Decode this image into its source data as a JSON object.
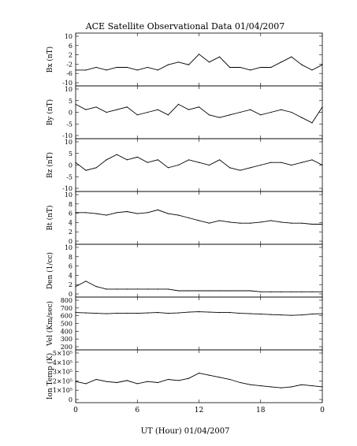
{
  "chart_data": [
    {
      "type": "line",
      "title": "ACE Satellite Observational Data   01/04/2007",
      "ylabel": "Bx (nT)",
      "ylim": [
        -10,
        10
      ],
      "yticks": [
        "10",
        "6",
        "2",
        "-2",
        "-6",
        "-10"
      ],
      "series": [
        {
          "x_hours": [
            0,
            1,
            2,
            3,
            4,
            5,
            6,
            7,
            8,
            9,
            10,
            11,
            12,
            13,
            14,
            15,
            16,
            17,
            18,
            19,
            20,
            21,
            22,
            23,
            24
          ],
          "values": [
            -4,
            -4,
            -3,
            -4,
            -3,
            -3,
            -4,
            -3,
            -4,
            -2,
            -1,
            -2,
            2,
            -1,
            1,
            -3,
            -3,
            -4,
            -3,
            -3,
            -1,
            1,
            -2,
            -4,
            -2
          ]
        }
      ]
    },
    {
      "type": "line",
      "ylabel": "By (nT)",
      "ylim": [
        -10,
        10
      ],
      "yticks": [
        "10",
        "5",
        "0",
        "-5",
        "-10"
      ],
      "series": [
        {
          "x_hours": [
            0,
            1,
            2,
            3,
            4,
            5,
            6,
            7,
            8,
            9,
            10,
            11,
            12,
            13,
            14,
            15,
            16,
            17,
            18,
            19,
            20,
            21,
            22,
            23,
            24
          ],
          "values": [
            3,
            1,
            2,
            0,
            1,
            2,
            -1,
            0,
            1,
            -1,
            3,
            1,
            2,
            -1,
            -2,
            -1,
            0,
            1,
            -1,
            0,
            1,
            0,
            -2,
            -4,
            2
          ]
        }
      ]
    },
    {
      "type": "line",
      "ylabel": "Bz (nT)",
      "ylim": [
        -10,
        10
      ],
      "yticks": [
        "10",
        "5",
        "0",
        "-5",
        "-10"
      ],
      "series": [
        {
          "x_hours": [
            0,
            1,
            2,
            3,
            4,
            5,
            6,
            7,
            8,
            9,
            10,
            11,
            12,
            13,
            14,
            15,
            16,
            17,
            18,
            19,
            20,
            21,
            22,
            23,
            24
          ],
          "values": [
            1,
            -2,
            -1,
            2,
            4,
            2,
            3,
            1,
            2,
            -1,
            0,
            2,
            1,
            0,
            2,
            -1,
            -2,
            -1,
            0,
            1,
            1,
            0,
            1,
            2,
            0
          ]
        }
      ]
    },
    {
      "type": "line",
      "ylabel": "Bt (nT)",
      "ylim": [
        0,
        10
      ],
      "yticks": [
        "10",
        "8",
        "6",
        "4",
        "2",
        "0"
      ],
      "series": [
        {
          "x_hours": [
            0,
            1,
            2,
            3,
            4,
            5,
            6,
            7,
            8,
            9,
            10,
            11,
            12,
            13,
            14,
            15,
            16,
            17,
            18,
            19,
            20,
            21,
            22,
            23,
            24
          ],
          "values": [
            6,
            6,
            5.8,
            5.5,
            6,
            6.2,
            5.8,
            6,
            6.5,
            5.8,
            5.5,
            5,
            4.5,
            4,
            4.5,
            4.2,
            4,
            4,
            4.2,
            4.5,
            4.2,
            4,
            4,
            3.8,
            3.8
          ]
        }
      ]
    },
    {
      "type": "line",
      "ylabel": "Den (1/cc)",
      "ylim": [
        0,
        10
      ],
      "yticks": [
        "10",
        "8",
        "6",
        "4",
        "2",
        "0"
      ],
      "series": [
        {
          "x_hours": [
            0,
            1,
            2,
            3,
            4,
            5,
            6,
            7,
            8,
            9,
            10,
            11,
            12,
            13,
            14,
            15,
            16,
            17,
            18,
            19,
            20,
            21,
            22,
            23,
            24
          ],
          "values": [
            2,
            3,
            2,
            1.5,
            1.5,
            1.5,
            1.5,
            1.5,
            1.5,
            1.5,
            1.2,
            1.2,
            1.2,
            1.2,
            1.2,
            1.2,
            1.2,
            1.2,
            1,
            1,
            1,
            1,
            1,
            1,
            1
          ]
        }
      ]
    },
    {
      "type": "line",
      "ylabel": "Vel (Km/sec)",
      "ylim": [
        200,
        850
      ],
      "yticks": [
        "800",
        "700",
        "600",
        "500",
        "400",
        "300",
        "200"
      ],
      "series": [
        {
          "x_hours": [
            0,
            1,
            2,
            3,
            4,
            5,
            6,
            7,
            8,
            9,
            10,
            11,
            12,
            13,
            14,
            15,
            16,
            17,
            18,
            19,
            20,
            21,
            22,
            23,
            24
          ],
          "values": [
            660,
            655,
            650,
            645,
            650,
            650,
            650,
            655,
            660,
            650,
            655,
            665,
            670,
            665,
            660,
            660,
            650,
            645,
            640,
            635,
            630,
            625,
            630,
            640,
            645
          ]
        }
      ]
    },
    {
      "type": "line",
      "ylabel": "Ion Temp (K)",
      "ylim": [
        0,
        500000
      ],
      "yticks": [
        "5×10⁵",
        "4×10⁵",
        "3×10⁵",
        "2×10⁵",
        "1×10⁵",
        "0"
      ],
      "xlabel": "UT (Hour)   01/04/2007",
      "xticks": [
        "0",
        "6",
        "12",
        "18",
        "0"
      ],
      "series": [
        {
          "x_hours": [
            0,
            1,
            2,
            3,
            4,
            5,
            6,
            7,
            8,
            9,
            10,
            11,
            12,
            13,
            14,
            15,
            16,
            17,
            18,
            19,
            20,
            21,
            22,
            23,
            24
          ],
          "values": [
            200000,
            180000,
            220000,
            200000,
            190000,
            210000,
            180000,
            200000,
            190000,
            220000,
            210000,
            230000,
            280000,
            260000,
            240000,
            220000,
            190000,
            170000,
            160000,
            150000,
            140000,
            150000,
            170000,
            160000,
            150000
          ]
        }
      ]
    }
  ]
}
